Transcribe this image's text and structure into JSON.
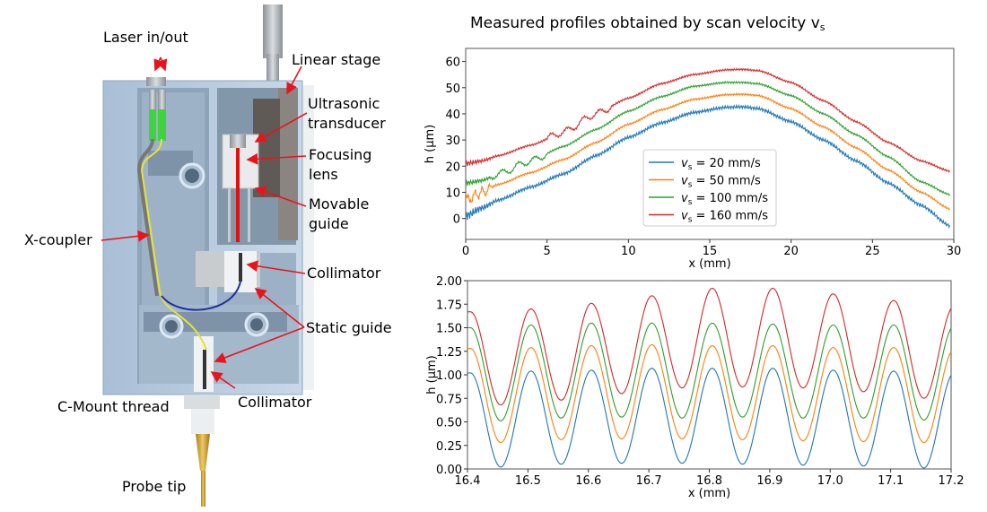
{
  "illustration": {
    "labels": {
      "laser": "Laser in/out",
      "linear_stage": "Linear stage",
      "ultrasonic_1": "Ultrasonic",
      "ultrasonic_2": "transducer",
      "focusing_1": "Focusing",
      "focusing_2": "lens",
      "movable_1": "Movable",
      "movable_2": "guide",
      "xcoupler": "X-coupler",
      "collimator_top": "Collimator",
      "static_guide": "Static guide",
      "cmount": "C-Mount thread",
      "collimator_bottom": "Collimator",
      "probe_tip": "Probe tip"
    },
    "colors": {
      "housing": "#b9cde0",
      "arrow": "#e8141c",
      "fiber_connector": "#3fd43f",
      "probe": "#d4a83a"
    }
  },
  "figure_title": {
    "main": "Measured profiles obtained by scan velocity v",
    "sub": "s"
  },
  "chart_data": [
    {
      "type": "line",
      "title": "",
      "xlabel": "x (mm)",
      "ylabel": "h (µm)",
      "xlim": [
        0,
        30
      ],
      "ylim": [
        -8,
        65
      ],
      "xticks": [
        0,
        5,
        10,
        15,
        20,
        25,
        30
      ],
      "xtick_labels": [
        "0",
        "5",
        "10",
        "15",
        "20",
        "25",
        "30"
      ],
      "yticks": [
        0,
        10,
        20,
        30,
        40,
        50,
        60
      ],
      "ytick_labels": [
        "0",
        "10",
        "20",
        "30",
        "40",
        "50",
        "60"
      ],
      "grid": false,
      "legend": "lower-center",
      "series": [
        {
          "name": "v_s = 20 mm/s",
          "label_main": "v",
          "label_sub": "s",
          "label_rest": " = 20 mm/s",
          "color": "#1f77b4",
          "x": [
            0,
            1,
            2,
            4,
            6,
            8,
            10,
            12,
            14,
            16,
            17,
            18,
            20,
            22,
            24,
            26,
            28,
            29.8
          ],
          "y": [
            1,
            4,
            7,
            12,
            17,
            24,
            31,
            36.5,
            40.5,
            42.5,
            42.7,
            42,
            37,
            30,
            22,
            13.5,
            5,
            -3
          ]
        },
        {
          "name": "v_s = 50 mm/s",
          "label_main": "v",
          "label_sub": "s",
          "label_rest": " = 50 mm/s",
          "color": "#ff7f0e",
          "x": [
            0,
            1,
            2,
            4,
            6,
            8,
            10,
            12,
            14,
            16,
            17,
            18,
            20,
            22,
            24,
            26,
            28,
            29.8
          ],
          "y": [
            7,
            10,
            13,
            17.5,
            22.5,
            29,
            36,
            41.5,
            45.5,
            47.3,
            47.5,
            47,
            42,
            35,
            27,
            18.5,
            10,
            3.5
          ]
        },
        {
          "name": "v_s = 100 mm/s",
          "label_main": "v",
          "label_sub": "s",
          "label_rest": " = 100 mm/s",
          "color": "#2ca02c",
          "x": [
            0,
            1,
            2,
            4,
            6,
            8,
            10,
            12,
            14,
            16,
            17,
            18,
            20,
            22,
            24,
            26,
            28,
            29.8
          ],
          "y": [
            13.5,
            14.5,
            17,
            22,
            27.5,
            34,
            41,
            46.5,
            50.5,
            52,
            52,
            51.5,
            47,
            40,
            32,
            23.5,
            14,
            9
          ]
        },
        {
          "name": "v_s = 160 mm/s",
          "label_main": "v",
          "label_sub": "s",
          "label_rest": " = 160 mm/s",
          "color": "#d62728",
          "x": [
            0,
            1,
            2,
            4,
            6,
            8,
            10,
            12,
            14,
            16,
            17,
            18,
            20,
            22,
            24,
            26,
            28,
            29.8
          ],
          "y": [
            21,
            22,
            24,
            28,
            33,
            40,
            46,
            51.5,
            55,
            56.8,
            57,
            56.5,
            52,
            45,
            37,
            29,
            22,
            18
          ]
        }
      ]
    },
    {
      "type": "line",
      "title": "",
      "xlabel": "x (mm)",
      "ylabel": "h (µm)",
      "xlim": [
        16.4,
        17.2
      ],
      "ylim": [
        0.0,
        2.0
      ],
      "xticks": [
        16.4,
        16.5,
        16.6,
        16.7,
        16.8,
        16.9,
        17.0,
        17.1,
        17.2
      ],
      "xtick_labels": [
        "16.4",
        "16.5",
        "16.6",
        "16.7",
        "16.8",
        "16.9",
        "17.0",
        "17.1",
        "17.2"
      ],
      "yticks": [
        0.0,
        0.25,
        0.5,
        0.75,
        1.0,
        1.25,
        1.5,
        1.75,
        2.0
      ],
      "ytick_labels": [
        "0.00",
        "0.25",
        "0.50",
        "0.75",
        "1.00",
        "1.25",
        "1.50",
        "1.75",
        "2.00"
      ],
      "grid": false,
      "period_mm": 0.1,
      "first_peak_x": 16.405,
      "series": [
        {
          "name": "v_s = 20 mm/s",
          "color": "#1f77b4",
          "peaks": [
            1.02,
            1.04,
            1.05,
            1.07,
            1.07,
            1.07,
            1.05,
            1.04
          ],
          "troughs": [
            0.02,
            0.05,
            0.06,
            0.06,
            0.05,
            0.04,
            0.03,
            0.01
          ],
          "end_value": 0.97
        },
        {
          "name": "v_s = 50 mm/s",
          "color": "#ff7f0e",
          "peaks": [
            1.28,
            1.29,
            1.31,
            1.32,
            1.31,
            1.31,
            1.29,
            1.29
          ],
          "troughs": [
            0.28,
            0.31,
            0.32,
            0.32,
            0.31,
            0.3,
            0.29,
            0.28
          ],
          "end_value": 1.22
        },
        {
          "name": "v_s = 100 mm/s",
          "color": "#2ca02c",
          "peaks": [
            1.5,
            1.53,
            1.55,
            1.55,
            1.55,
            1.54,
            1.53,
            1.53
          ],
          "troughs": [
            0.51,
            0.54,
            0.55,
            0.54,
            0.55,
            0.54,
            0.54,
            0.52
          ],
          "end_value": 1.47
        },
        {
          "name": "v_s = 160 mm/s",
          "color": "#d62728",
          "peaks": [
            1.67,
            1.7,
            1.76,
            1.84,
            1.92,
            1.92,
            1.86,
            1.79
          ],
          "troughs": [
            0.68,
            0.73,
            0.8,
            0.86,
            0.87,
            0.86,
            0.82,
            0.75
          ],
          "end_value": 1.68
        }
      ]
    }
  ]
}
